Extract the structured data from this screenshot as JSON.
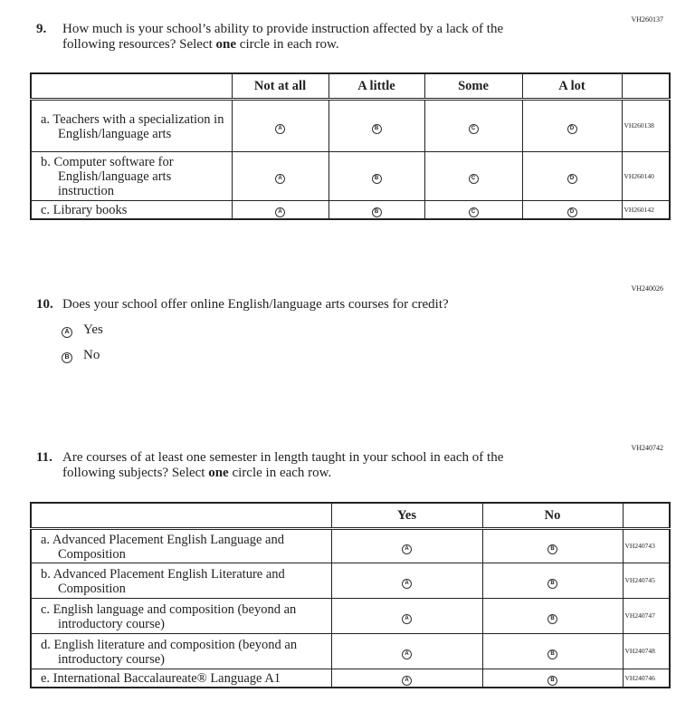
{
  "q9": {
    "code": "VH260137",
    "number": "9.",
    "text1": "How much is your school’s ability to provide instruction affected by a lack of the",
    "text2_pre": "following resources? Select ",
    "text2_bold": "one",
    "text2_post": " circle in each row.",
    "columns": [
      "Not at all",
      "A little",
      "Some",
      "A lot"
    ],
    "bubbles": [
      "A",
      "B",
      "C",
      "D"
    ],
    "rows": [
      {
        "label": "a. Teachers with a specialization in English/language arts",
        "code": "VH260138"
      },
      {
        "label": "b. Computer software for English/language arts instruction",
        "code": "VH260140"
      },
      {
        "label": "c. Library books",
        "code": "VH260142"
      }
    ]
  },
  "q10": {
    "code": "VH240026",
    "number": "10.",
    "text": "Does your school offer online English/language arts courses for credit?",
    "options": [
      {
        "bubble": "A",
        "label": "Yes"
      },
      {
        "bubble": "B",
        "label": "No"
      }
    ]
  },
  "q11": {
    "code": "VH240742",
    "number": "11.",
    "text1": "Are courses of at least one semester in length taught in your school in each of the",
    "text2_pre": "following subjects? Select ",
    "text2_bold": "one",
    "text2_post": " circle in each row.",
    "columns": [
      "Yes",
      "No"
    ],
    "bubbles": [
      "A",
      "B"
    ],
    "rows": [
      {
        "label": "a. Advanced Placement English Language and Composition",
        "code": "VH240743"
      },
      {
        "label": "b. Advanced Placement English Literature and Composition",
        "code": "VH240745"
      },
      {
        "label": "c. English language and composition (beyond an introductory course)",
        "code": "VH240747"
      },
      {
        "label": "d. English literature and composition (beyond an introductory course)",
        "code": "VH240748"
      },
      {
        "label": "e. International Baccalaureate® Language A1",
        "code": "VH240746"
      }
    ]
  }
}
